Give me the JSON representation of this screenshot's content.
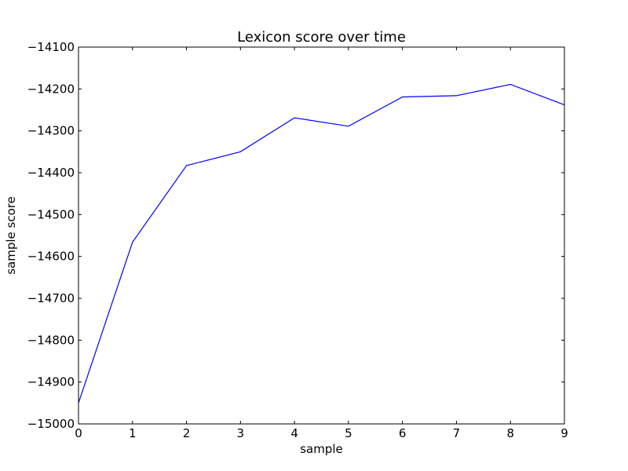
{
  "chart_data": {
    "type": "line",
    "title": "Lexicon score over time",
    "xlabel": "sample",
    "ylabel": "sample score",
    "xlim": [
      0,
      9
    ],
    "ylim": [
      -15000,
      -14100
    ],
    "xticks": [
      0,
      1,
      2,
      3,
      4,
      5,
      6,
      7,
      8,
      9
    ],
    "yticks": [
      -15000,
      -14900,
      -14800,
      -14700,
      -14600,
      -14500,
      -14400,
      -14300,
      -14200,
      -14100
    ],
    "xtick_labels": [
      "0",
      "1",
      "2",
      "3",
      "4",
      "5",
      "6",
      "7",
      "8",
      "9"
    ],
    "ytick_labels": [
      "−15000",
      "−14900",
      "−14800",
      "−14700",
      "−14600",
      "−14500",
      "−14400",
      "−14300",
      "−14200",
      "−14100"
    ],
    "grid": false,
    "legend": false,
    "series": [
      {
        "color": "#0000ff",
        "x": [
          0,
          1,
          2,
          3,
          4,
          5,
          6,
          7,
          8,
          9
        ],
        "y": [
          -14950,
          -14566,
          -14383,
          -14350,
          -14269,
          -14289,
          -14219,
          -14216,
          -14189,
          -14238
        ]
      }
    ]
  }
}
